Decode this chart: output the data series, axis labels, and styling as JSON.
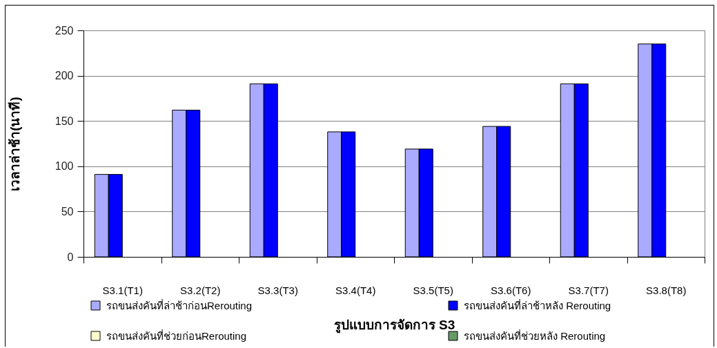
{
  "chart_data": {
    "type": "bar",
    "xlabel": "รูปแบบการจัดการ S3",
    "ylabel": "เวลาล่าช้า(นาที)",
    "categories": [
      "S3.1(T1)",
      "S3.2(T2)",
      "S3.3(T3)",
      "S3.4(T4)",
      "S3.5(T5)",
      "S3.6(T6)",
      "S3.7(T7)",
      "S3.8(T8)"
    ],
    "series": [
      {
        "name": "รถขนส่งคันที่ล่าช้าก่อนRerouting",
        "color": "#aaaaff",
        "values": [
          91,
          162,
          191,
          138,
          119,
          144,
          191,
          235
        ]
      },
      {
        "name": "รถขนส่งคันที่ล่าช้าหลัง Rerouting",
        "color": "#0000ff",
        "values": [
          91,
          162,
          191,
          138,
          119,
          144,
          191,
          235
        ]
      },
      {
        "name": "รถขนส่งคันที่ช่วยก่อนRerouting",
        "color": "#ffffcc",
        "values": [
          null,
          null,
          null,
          null,
          null,
          null,
          null,
          null
        ]
      },
      {
        "name": "รถขนส่งคันที่ช่วยหลัง Rerouting",
        "color": "#669966",
        "values": [
          null,
          null,
          null,
          null,
          null,
          null,
          null,
          null
        ]
      }
    ],
    "ylim": [
      0,
      250
    ],
    "yticks": [
      0,
      50,
      100,
      150,
      200,
      250
    ],
    "grid": "y",
    "legend": "bottom"
  }
}
